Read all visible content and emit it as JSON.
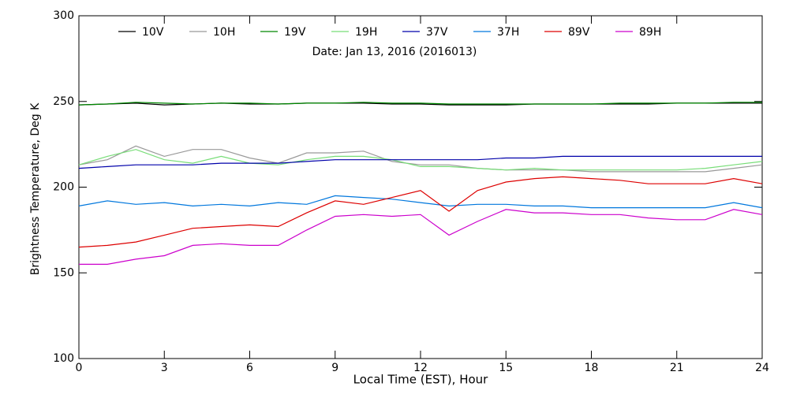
{
  "chart_data": {
    "type": "line",
    "subtitle": "Date: Jan 13, 2016 (2016013)",
    "xlabel": "Local Time (EST), Hour",
    "ylabel": "Brightness Temperature, Deg K",
    "xlim": [
      0,
      24
    ],
    "xticks": [
      0,
      3,
      6,
      9,
      12,
      15,
      18,
      21,
      24
    ],
    "ylim": [
      100,
      300
    ],
    "yticks": [
      100,
      150,
      200,
      250,
      300
    ],
    "x": [
      0,
      1,
      2,
      3,
      4,
      5,
      6,
      7,
      8,
      9,
      10,
      11,
      12,
      13,
      14,
      15,
      16,
      17,
      18,
      19,
      20,
      21,
      22,
      23,
      24
    ],
    "series": [
      {
        "name": "10V",
        "color": "#000000",
        "values": [
          248,
          248.5,
          249,
          248,
          248.5,
          249,
          248.5,
          248.5,
          249,
          249,
          249,
          248.5,
          248.5,
          248,
          248,
          248,
          248.5,
          248.5,
          248.5,
          248.5,
          248.5,
          249,
          249,
          249,
          249
        ]
      },
      {
        "name": "10H",
        "color": "#999999",
        "values": [
          213,
          216,
          224,
          218,
          222,
          222,
          217,
          214,
          220,
          220,
          221,
          215,
          213,
          213,
          211,
          210,
          210,
          210,
          209,
          209,
          209,
          209,
          209,
          211,
          213
        ]
      },
      {
        "name": "19V",
        "color": "#008800",
        "values": [
          248,
          248.5,
          249.5,
          249,
          248.5,
          249,
          249,
          248.5,
          249,
          249,
          249.5,
          249,
          249,
          248.5,
          248.5,
          248.5,
          248.5,
          248.5,
          248.5,
          249,
          249,
          249,
          249,
          249.5,
          249.5
        ]
      },
      {
        "name": "19H",
        "color": "#77dd77",
        "values": [
          213,
          218,
          222,
          216,
          214,
          218,
          214,
          213,
          216,
          218,
          218,
          216,
          212,
          212,
          211,
          210,
          211,
          210,
          210,
          210,
          210,
          210,
          211,
          213,
          215
        ]
      },
      {
        "name": "37V",
        "color": "#0000aa",
        "values": [
          211,
          212,
          213,
          213,
          213,
          214,
          214,
          214,
          215,
          216,
          216,
          216,
          216,
          216,
          216,
          217,
          217,
          218,
          218,
          218,
          218,
          218,
          218,
          218,
          218
        ]
      },
      {
        "name": "37H",
        "color": "#0077dd",
        "values": [
          189,
          192,
          190,
          191,
          189,
          190,
          189,
          191,
          190,
          195,
          194,
          193,
          191,
          189,
          190,
          190,
          189,
          189,
          188,
          188,
          188,
          188,
          188,
          191,
          188
        ]
      },
      {
        "name": "89V",
        "color": "#dd0000",
        "values": [
          165,
          166,
          168,
          172,
          176,
          177,
          178,
          177,
          185,
          192,
          190,
          194,
          198,
          186,
          198,
          203,
          205,
          206,
          205,
          204,
          202,
          202,
          202,
          205,
          202
        ]
      },
      {
        "name": "89H",
        "color": "#cc00cc",
        "values": [
          155,
          155,
          158,
          160,
          166,
          167,
          166,
          166,
          175,
          183,
          184,
          183,
          184,
          172,
          180,
          187,
          185,
          185,
          184,
          184,
          182,
          181,
          181,
          187,
          184
        ]
      }
    ]
  }
}
